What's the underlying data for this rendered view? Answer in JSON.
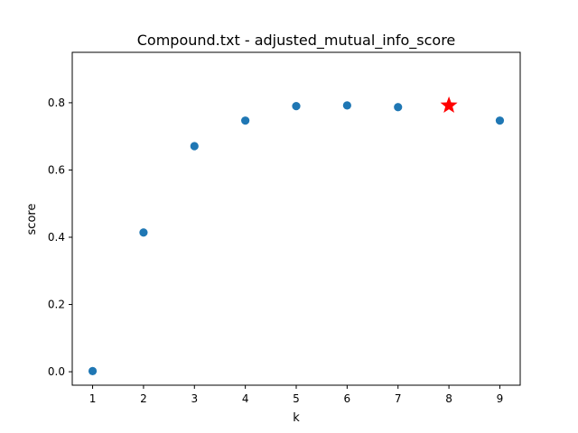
{
  "chart_data": {
    "type": "scatter",
    "title": "Compound.txt - adjusted_mutual_info_score",
    "xlabel": "k",
    "ylabel": "score",
    "xlim": [
      0.6,
      9.4
    ],
    "ylim": [
      -0.04,
      0.95
    ],
    "grid": false,
    "x_ticks": [
      1,
      2,
      3,
      4,
      5,
      6,
      7,
      8,
      9
    ],
    "y_ticks": [
      0.0,
      0.2,
      0.4,
      0.6,
      0.8
    ],
    "y_tick_labels": [
      "0.0",
      "0.2",
      "0.4",
      "0.6",
      "0.8"
    ],
    "series": [
      {
        "marker": "circle",
        "color": "#1f77b4",
        "x": [
          1,
          2,
          3,
          4,
          5,
          6,
          7,
          9
        ],
        "y": [
          0.002,
          0.414,
          0.671,
          0.747,
          0.79,
          0.792,
          0.787,
          0.747
        ]
      },
      {
        "marker": "star",
        "color": "#ff0000",
        "x": [
          8
        ],
        "y": [
          0.792
        ]
      }
    ]
  }
}
